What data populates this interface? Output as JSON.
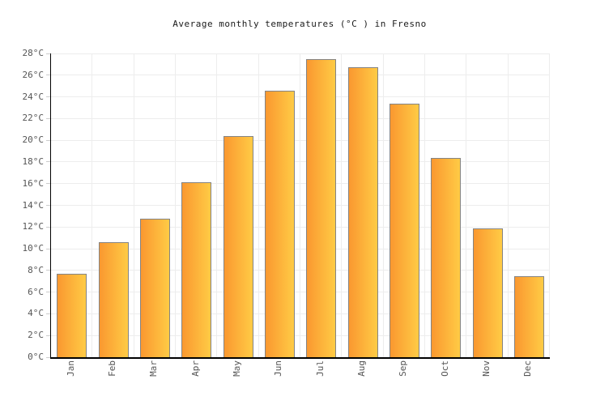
{
  "chart_data": {
    "type": "bar",
    "title": "Average monthly temperatures (°C ) in Fresno",
    "categories": [
      "Jan",
      "Feb",
      "Mar",
      "Apr",
      "May",
      "Jun",
      "Jul",
      "Aug",
      "Sep",
      "Oct",
      "Nov",
      "Dec"
    ],
    "values": [
      7.7,
      10.6,
      12.8,
      16.1,
      20.4,
      24.6,
      27.5,
      26.7,
      23.4,
      18.4,
      11.9,
      7.5
    ],
    "xlabel": "",
    "ylabel": "",
    "ylim": [
      0,
      28
    ],
    "ytick_labels": [
      "0°C",
      "2°C",
      "4°C",
      "6°C",
      "8°C",
      "10°C",
      "12°C",
      "14°C",
      "16°C",
      "18°C",
      "20°C",
      "22°C",
      "24°C",
      "26°C",
      "28°C"
    ],
    "grid": true,
    "legend": "none",
    "colors": {
      "bar_gradient_left": "#fa9830",
      "bar_gradient_right": "#ffcb45",
      "bar_border": "#848484",
      "gridline": "#ededed",
      "axis": "#000000",
      "tick": "#cccccc",
      "tick_label": "#555555",
      "title_text": "#1a1a1a",
      "background": "#ffffff"
    }
  }
}
